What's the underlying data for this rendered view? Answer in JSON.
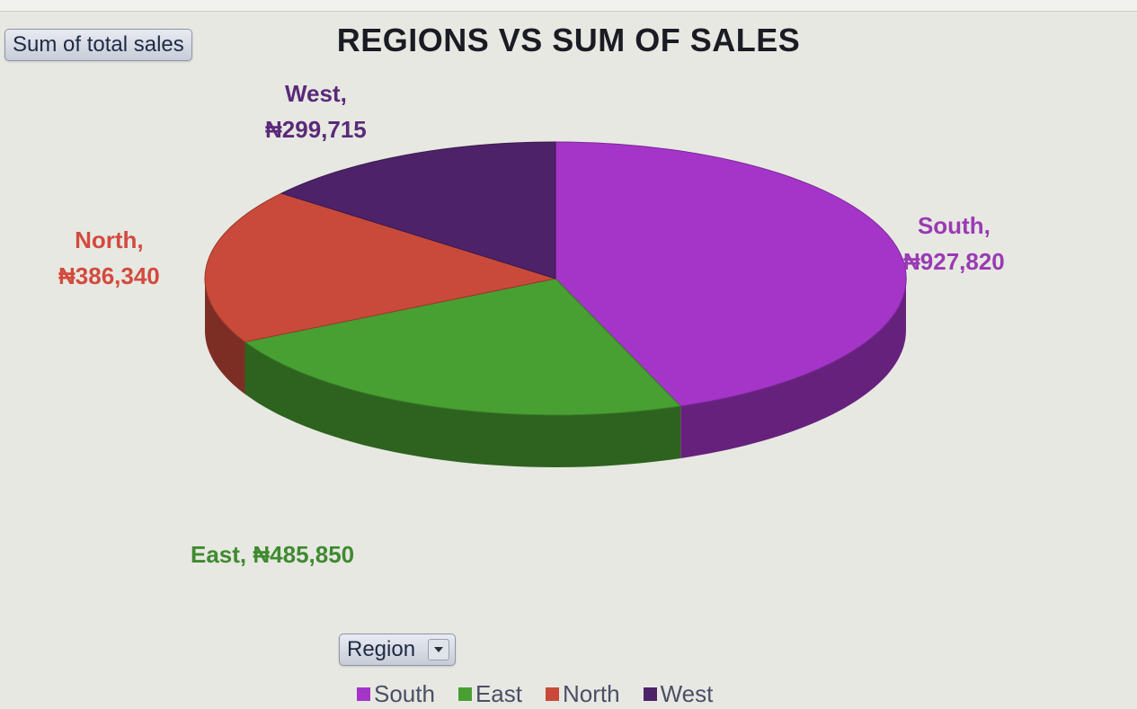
{
  "field_buttons": {
    "sum": "Sum of total sales",
    "region": "Region"
  },
  "colors": {
    "South": "#a535c9",
    "East": "#48a032",
    "North": "#c94a3a",
    "West": "#4e2268"
  },
  "chart_data": {
    "type": "pie",
    "title": "REGIONS VS SUM OF SALES",
    "categories": [
      "South",
      "East",
      "North",
      "West"
    ],
    "values": [
      927820,
      485850,
      386340,
      299715
    ],
    "data_labels": {
      "South": [
        "South,",
        "₦927,820"
      ],
      "East": [
        "East,  ₦485,850"
      ],
      "North": [
        "North,",
        "₦386,340"
      ],
      "West": [
        "West,",
        "₦299,715"
      ]
    },
    "legend": [
      "South",
      "East",
      "North",
      "West"
    ],
    "legend_position": "bottom",
    "style": "3d"
  }
}
